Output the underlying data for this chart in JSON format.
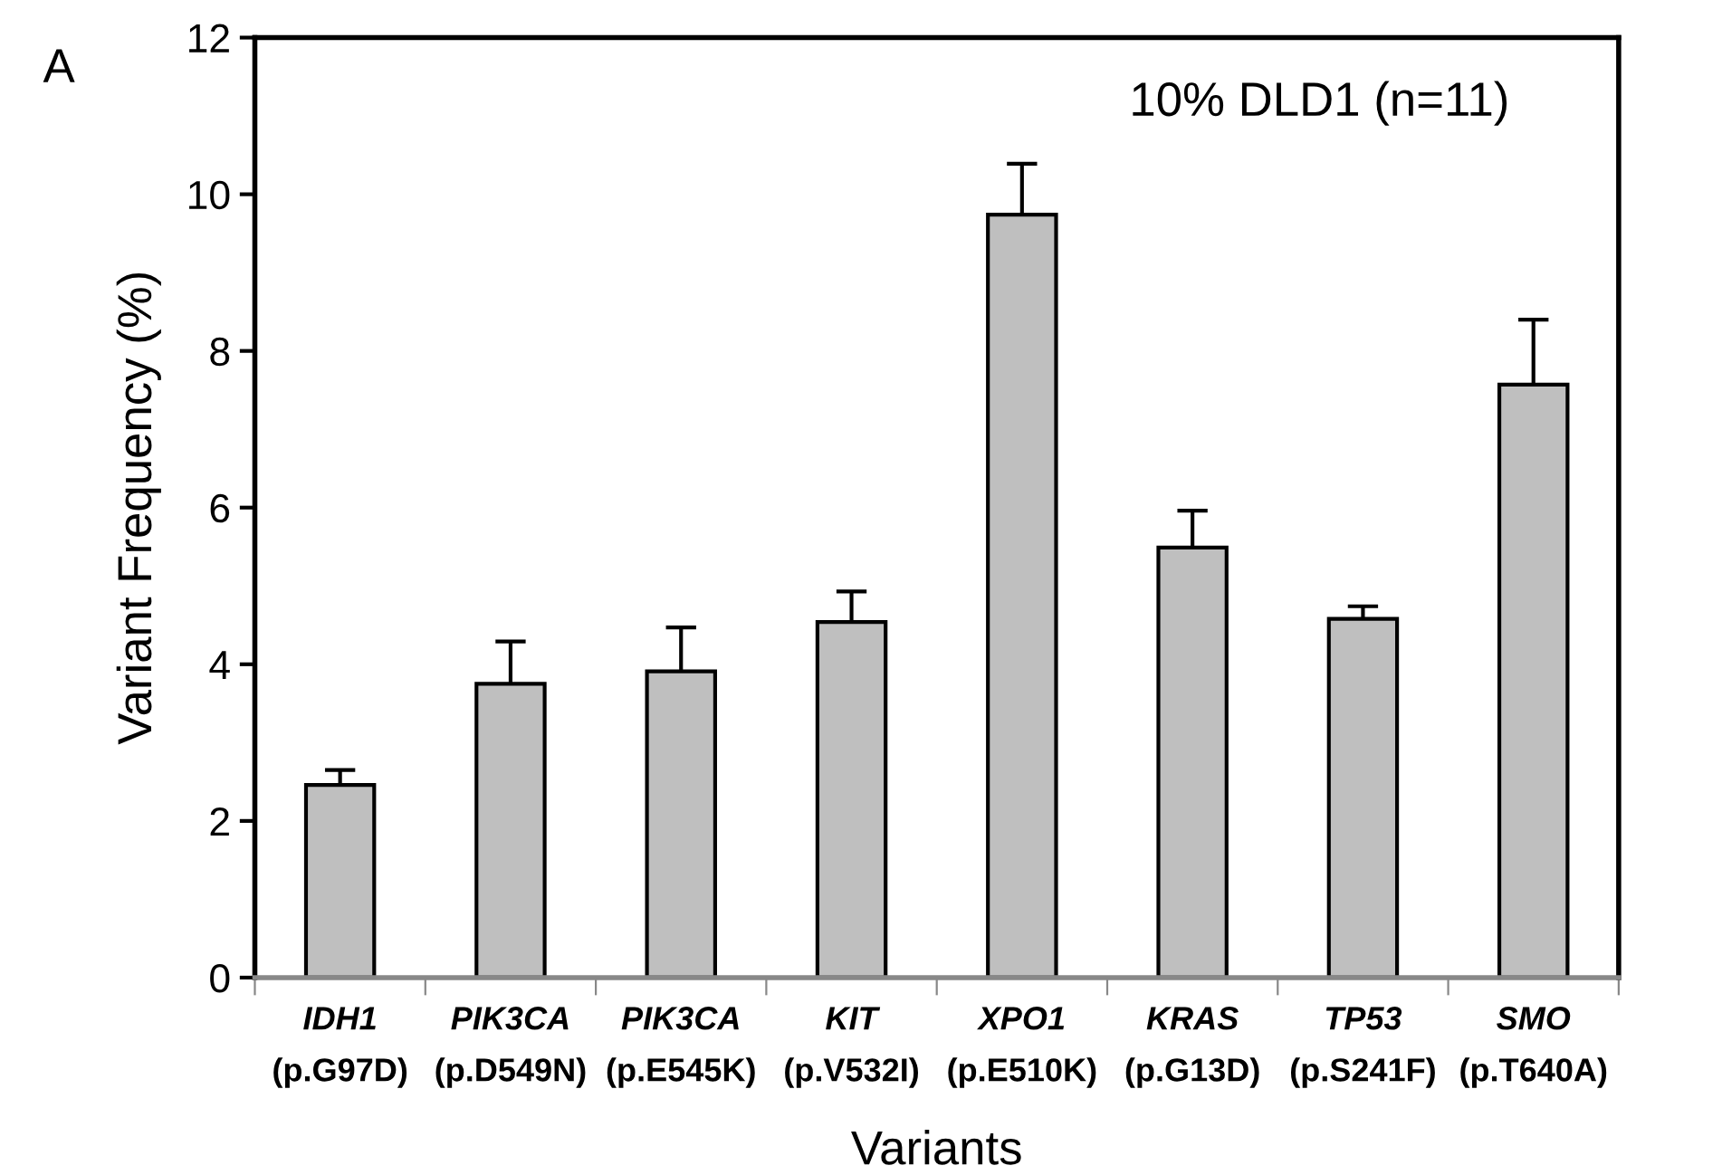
{
  "chart_data": {
    "type": "bar",
    "xlabel": "Variants",
    "ylabel": "Variant Frequency (%)",
    "categories": [
      "IDH1\n(p.G97D)",
      "PIK3CA\n(p.D549N)",
      "PIK3CA\n(p.E545K)",
      "KIT\n(p.V532I)",
      "XPO1\n(p.E510K)",
      "KRAS\n(p.G13D)",
      "TP53\n(p.S241F)",
      "SMO\n(p.T640A)"
    ],
    "values": [
      2.46,
      3.75,
      3.91,
      4.54,
      9.74,
      5.49,
      4.58,
      7.57
    ],
    "errors": [
      0.19,
      0.54,
      0.56,
      0.39,
      0.65,
      0.47,
      0.16,
      0.83
    ],
    "color": "#bfbfbf",
    "ylim": [
      0,
      12
    ],
    "yticks": [
      0,
      2,
      4,
      6,
      8,
      10,
      12
    ],
    "grid": false,
    "legend": false,
    "annotations": [
      "A",
      "10% DLD1 (n=11)"
    ]
  }
}
